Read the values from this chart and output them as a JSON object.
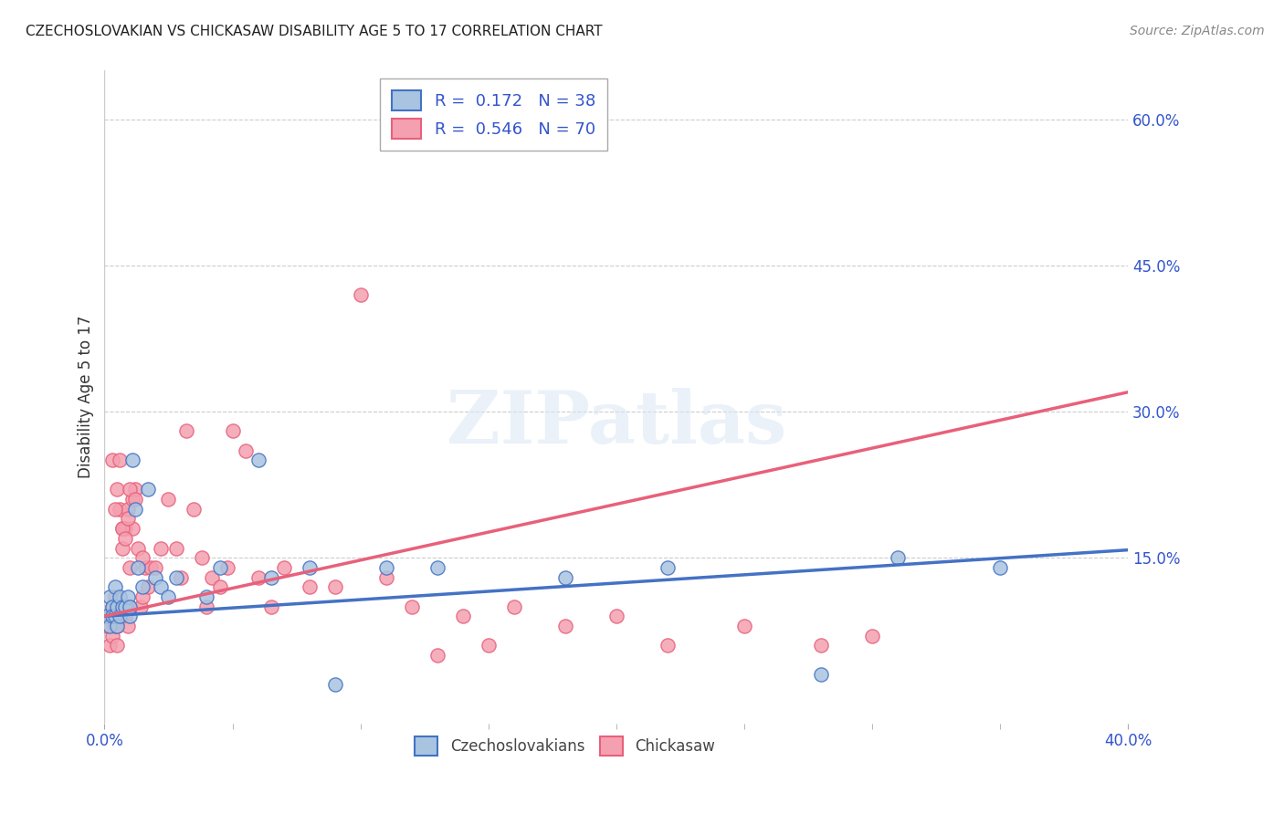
{
  "title": "CZECHOSLOVAKIAN VS CHICKASAW DISABILITY AGE 5 TO 17 CORRELATION CHART",
  "source": "Source: ZipAtlas.com",
  "ylabel": "Disability Age 5 to 17",
  "watermark": "ZIPatlas",
  "xlim": [
    0.0,
    0.4
  ],
  "ylim": [
    -0.02,
    0.65
  ],
  "xticks": [
    0.0,
    0.4
  ],
  "xtick_labels": [
    "0.0%",
    "40.0%"
  ],
  "yticks_right": [
    0.15,
    0.3,
    0.45,
    0.6
  ],
  "ytick_labels_right": [
    "15.0%",
    "30.0%",
    "45.0%",
    "60.0%"
  ],
  "legend_r_czech": "0.172",
  "legend_n_czech": "38",
  "legend_r_chickasaw": "0.546",
  "legend_n_chickasaw": "70",
  "czech_color": "#a8c4e0",
  "chickasaw_color": "#f4a0b0",
  "czech_line_color": "#4472c4",
  "chickasaw_line_color": "#e8607a",
  "legend_text_color": "#3355cc",
  "background_color": "#ffffff",
  "czech_line_start_y": 0.09,
  "czech_line_end_y": 0.158,
  "chickasaw_line_start_y": 0.09,
  "chickasaw_line_end_y": 0.32,
  "czech_scatter_x": [
    0.001,
    0.002,
    0.002,
    0.003,
    0.003,
    0.004,
    0.004,
    0.005,
    0.005,
    0.006,
    0.006,
    0.007,
    0.008,
    0.009,
    0.01,
    0.01,
    0.011,
    0.012,
    0.013,
    0.015,
    0.017,
    0.02,
    0.022,
    0.025,
    0.028,
    0.04,
    0.045,
    0.06,
    0.065,
    0.08,
    0.09,
    0.11,
    0.13,
    0.18,
    0.22,
    0.28,
    0.35,
    0.31
  ],
  "czech_scatter_y": [
    0.09,
    0.11,
    0.08,
    0.1,
    0.09,
    0.12,
    0.09,
    0.1,
    0.08,
    0.11,
    0.09,
    0.1,
    0.1,
    0.11,
    0.09,
    0.1,
    0.25,
    0.2,
    0.14,
    0.12,
    0.22,
    0.13,
    0.12,
    0.11,
    0.13,
    0.11,
    0.14,
    0.25,
    0.13,
    0.14,
    0.02,
    0.14,
    0.14,
    0.13,
    0.14,
    0.03,
    0.14,
    0.15
  ],
  "chickasaw_scatter_x": [
    0.001,
    0.002,
    0.002,
    0.003,
    0.003,
    0.004,
    0.004,
    0.005,
    0.005,
    0.006,
    0.006,
    0.007,
    0.007,
    0.008,
    0.008,
    0.009,
    0.009,
    0.01,
    0.01,
    0.011,
    0.011,
    0.012,
    0.013,
    0.014,
    0.015,
    0.016,
    0.017,
    0.018,
    0.02,
    0.022,
    0.025,
    0.028,
    0.03,
    0.032,
    0.035,
    0.038,
    0.04,
    0.042,
    0.045,
    0.048,
    0.05,
    0.055,
    0.06,
    0.065,
    0.07,
    0.08,
    0.09,
    0.1,
    0.11,
    0.12,
    0.13,
    0.14,
    0.15,
    0.16,
    0.18,
    0.2,
    0.22,
    0.25,
    0.28,
    0.3,
    0.003,
    0.004,
    0.005,
    0.006,
    0.007,
    0.008,
    0.009,
    0.01,
    0.012,
    0.015
  ],
  "chickasaw_scatter_y": [
    0.08,
    0.09,
    0.06,
    0.1,
    0.07,
    0.11,
    0.08,
    0.08,
    0.06,
    0.2,
    0.09,
    0.16,
    0.18,
    0.18,
    0.09,
    0.2,
    0.08,
    0.1,
    0.14,
    0.21,
    0.18,
    0.22,
    0.16,
    0.1,
    0.11,
    0.14,
    0.12,
    0.14,
    0.14,
    0.16,
    0.21,
    0.16,
    0.13,
    0.28,
    0.2,
    0.15,
    0.1,
    0.13,
    0.12,
    0.14,
    0.28,
    0.26,
    0.13,
    0.1,
    0.14,
    0.12,
    0.12,
    0.42,
    0.13,
    0.1,
    0.05,
    0.09,
    0.06,
    0.1,
    0.08,
    0.09,
    0.06,
    0.08,
    0.06,
    0.07,
    0.25,
    0.2,
    0.22,
    0.25,
    0.18,
    0.17,
    0.19,
    0.22,
    0.21,
    0.15
  ]
}
